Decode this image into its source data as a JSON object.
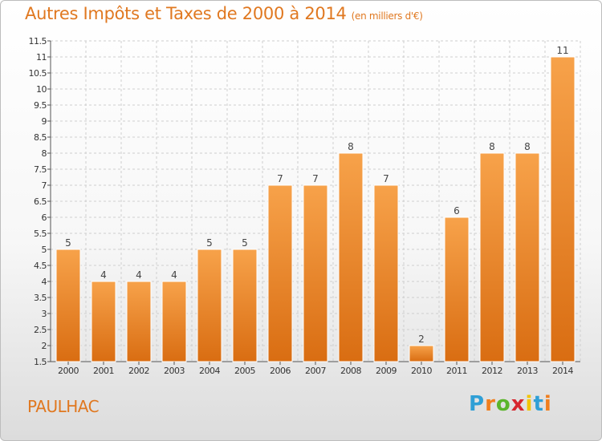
{
  "header": {
    "title": "Autres Impôts et Taxes de 2000 à 2014",
    "unit_note": "(en milliers d'€)"
  },
  "footer": {
    "place": "PAULHAC",
    "brand": {
      "text": "Proxiti",
      "letter_colors": [
        "#2f9fd6",
        "#f07e1e",
        "#5bb52b",
        "#d7262e",
        "#f2c400",
        "#2f9fd6",
        "#f07e1e"
      ]
    }
  },
  "colors": {
    "bar_top": "#f7a24a",
    "bar_bottom": "#d96d12",
    "bar_stroke": "#ffffff",
    "grid": "#cfcfcf",
    "axis": "#555555",
    "title": "#e07820"
  },
  "chart_data": {
    "type": "bar",
    "title": "Autres Impôts et Taxes de 2000 à 2014",
    "subtitle": "(en milliers d'€)",
    "xlabel": "",
    "ylabel": "",
    "categories": [
      "2000",
      "2001",
      "2002",
      "2003",
      "2004",
      "2005",
      "2006",
      "2007",
      "2008",
      "2009",
      "2010",
      "2011",
      "2012",
      "2013",
      "2014"
    ],
    "values": [
      5,
      4,
      4,
      4,
      5,
      5,
      7,
      7,
      8,
      7,
      2,
      6,
      8,
      8,
      11
    ],
    "data_labels": [
      "5",
      "4",
      "4",
      "4",
      "5",
      "5",
      "7",
      "7",
      "8",
      "7",
      "2",
      "6",
      "8",
      "8",
      "11"
    ],
    "ylim": [
      1.5,
      11.5
    ],
    "yticks": [
      1.5,
      2,
      2.5,
      3,
      3.5,
      4,
      4.5,
      5,
      5.5,
      6,
      6.5,
      7,
      7.5,
      8,
      8.5,
      9,
      9.5,
      10,
      10.5,
      11,
      11.5
    ],
    "ytick_labels": [
      "1.5",
      "2",
      "2.5",
      "3",
      "3.5",
      "4",
      "4.5",
      "5",
      "5.5",
      "6",
      "6.5",
      "7",
      "7.5",
      "8",
      "8.5",
      "9",
      "9.5",
      "10",
      "10.5",
      "11",
      "11.5"
    ],
    "grid": true,
    "grid_style": "dashed",
    "legend": "none"
  }
}
